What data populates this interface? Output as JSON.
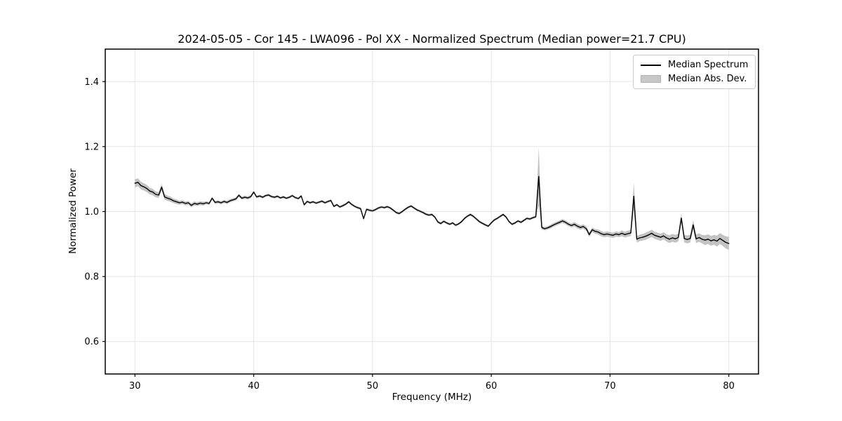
{
  "chart": {
    "title": "2024-05-05 - Cor 145 - LWA096 - Pol XX - Normalized Spectrum (Median power=21.7 CPU)",
    "xlabel": "Frequency (MHz)",
    "ylabel": "Normalized Power",
    "legend": [
      {
        "label": "Median Spectrum",
        "swatch": "line"
      },
      {
        "label": "Median Abs. Dev.",
        "swatch": "patch"
      }
    ]
  },
  "colors": {
    "line": "#000000",
    "band": "#c3c3c3",
    "grid": "#e5e5e5",
    "spine": "#000000",
    "text": "#000000",
    "legend_border": "#cccccc",
    "background": "#ffffff"
  },
  "chart_data": {
    "type": "line",
    "title": "2024-05-05 - Cor 145 - LWA096 - Pol XX - Normalized Spectrum (Median power=21.7 CPU)",
    "xlabel": "Frequency (MHz)",
    "ylabel": "Normalized Power",
    "xlim": [
      27.5,
      82.5
    ],
    "ylim": [
      0.5,
      1.5
    ],
    "x_ticks": [
      30,
      40,
      50,
      60,
      70,
      80
    ],
    "y_ticks": [
      0.6,
      0.8,
      1.0,
      1.2,
      1.4
    ],
    "grid": true,
    "legend_position": "upper right",
    "x_start": 30.0,
    "x_step": 0.25,
    "series": [
      {
        "name": "Median Spectrum",
        "color": "#000000",
        "values": [
          1.087,
          1.09,
          1.08,
          1.076,
          1.071,
          1.063,
          1.06,
          1.053,
          1.051,
          1.075,
          1.045,
          1.041,
          1.038,
          1.033,
          1.03,
          1.027,
          1.029,
          1.025,
          1.027,
          1.019,
          1.025,
          1.023,
          1.026,
          1.024,
          1.027,
          1.025,
          1.041,
          1.028,
          1.03,
          1.027,
          1.031,
          1.028,
          1.033,
          1.036,
          1.039,
          1.05,
          1.041,
          1.044,
          1.042,
          1.046,
          1.06,
          1.045,
          1.048,
          1.044,
          1.049,
          1.051,
          1.046,
          1.044,
          1.047,
          1.042,
          1.045,
          1.041,
          1.044,
          1.049,
          1.043,
          1.04,
          1.048,
          1.021,
          1.031,
          1.027,
          1.03,
          1.026,
          1.029,
          1.032,
          1.027,
          1.031,
          1.034,
          1.016,
          1.021,
          1.014,
          1.018,
          1.023,
          1.03,
          1.022,
          1.016,
          1.012,
          1.009,
          0.978,
          1.007,
          1.004,
          1.002,
          1.006,
          1.011,
          1.014,
          1.012,
          1.015,
          1.011,
          1.004,
          0.997,
          0.994,
          1.0,
          1.007,
          1.013,
          1.017,
          1.011,
          1.005,
          1.001,
          0.997,
          0.992,
          0.989,
          0.991,
          0.983,
          0.968,
          0.963,
          0.97,
          0.965,
          0.961,
          0.965,
          0.958,
          0.962,
          0.969,
          0.979,
          0.986,
          0.991,
          0.985,
          0.977,
          0.969,
          0.964,
          0.959,
          0.955,
          0.965,
          0.974,
          0.979,
          0.985,
          0.991,
          0.983,
          0.969,
          0.961,
          0.965,
          0.971,
          0.967,
          0.973,
          0.979,
          0.977,
          0.981,
          0.984,
          1.108,
          0.951,
          0.947,
          0.95,
          0.954,
          0.959,
          0.963,
          0.967,
          0.971,
          0.967,
          0.961,
          0.957,
          0.961,
          0.955,
          0.951,
          0.954,
          0.947,
          0.929,
          0.944,
          0.939,
          0.937,
          0.932,
          0.929,
          0.931,
          0.929,
          0.927,
          0.931,
          0.929,
          0.933,
          0.929,
          0.932,
          0.934,
          1.047,
          0.915,
          0.919,
          0.921,
          0.924,
          0.928,
          0.933,
          0.927,
          0.924,
          0.921,
          0.925,
          0.919,
          0.915,
          0.919,
          0.916,
          0.92,
          0.98,
          0.917,
          0.914,
          0.917,
          0.959,
          0.916,
          0.92,
          0.915,
          0.912,
          0.915,
          0.91,
          0.913,
          0.909,
          0.917,
          0.911,
          0.905,
          0.902
        ]
      },
      {
        "name": "Median Abs. Dev.",
        "color": "#c3c3c3",
        "band_halfwidth": [
          0.013,
          0.012,
          0.012,
          0.011,
          0.011,
          0.01,
          0.01,
          0.009,
          0.009,
          0.01,
          0.009,
          0.008,
          0.008,
          0.007,
          0.007,
          0.006,
          0.006,
          0.006,
          0.006,
          0.006,
          0.006,
          0.006,
          0.006,
          0.006,
          0.005,
          0.005,
          0.005,
          0.005,
          0.005,
          0.005,
          0.005,
          0.005,
          0.005,
          0.005,
          0.005,
          0.005,
          0.005,
          0.005,
          0.005,
          0.005,
          0.004,
          0.004,
          0.004,
          0.004,
          0.004,
          0.004,
          0.004,
          0.004,
          0.004,
          0.004,
          0.004,
          0.004,
          0.004,
          0.004,
          0.004,
          0.004,
          0.004,
          0.004,
          0.004,
          0.004,
          0.004,
          0.004,
          0.004,
          0.004,
          0.004,
          0.004,
          0.004,
          0.004,
          0.004,
          0.004,
          0.004,
          0.004,
          0.004,
          0.004,
          0.004,
          0.004,
          0.004,
          0.004,
          0.004,
          0.004,
          0.004,
          0.004,
          0.004,
          0.004,
          0.004,
          0.004,
          0.004,
          0.004,
          0.004,
          0.004,
          0.004,
          0.004,
          0.004,
          0.004,
          0.004,
          0.004,
          0.004,
          0.004,
          0.004,
          0.004,
          0.004,
          0.004,
          0.004,
          0.004,
          0.004,
          0.004,
          0.004,
          0.004,
          0.004,
          0.004,
          0.004,
          0.004,
          0.004,
          0.004,
          0.004,
          0.004,
          0.004,
          0.004,
          0.004,
          0.004,
          0.004,
          0.004,
          0.004,
          0.004,
          0.004,
          0.004,
          0.004,
          0.004,
          0.004,
          0.004,
          0.004,
          0.004,
          0.004,
          0.004,
          0.004,
          0.004,
          0.09,
          0.006,
          0.005,
          0.005,
          0.006,
          0.006,
          0.006,
          0.006,
          0.006,
          0.006,
          0.006,
          0.006,
          0.007,
          0.007,
          0.007,
          0.007,
          0.007,
          0.007,
          0.007,
          0.007,
          0.008,
          0.008,
          0.008,
          0.008,
          0.008,
          0.008,
          0.008,
          0.008,
          0.009,
          0.009,
          0.009,
          0.009,
          0.042,
          0.01,
          0.01,
          0.01,
          0.011,
          0.011,
          0.011,
          0.011,
          0.011,
          0.011,
          0.011,
          0.011,
          0.012,
          0.012,
          0.012,
          0.012,
          0.014,
          0.012,
          0.012,
          0.012,
          0.014,
          0.013,
          0.013,
          0.013,
          0.015,
          0.015,
          0.015,
          0.015,
          0.017,
          0.017,
          0.017,
          0.019,
          0.02
        ]
      }
    ]
  }
}
